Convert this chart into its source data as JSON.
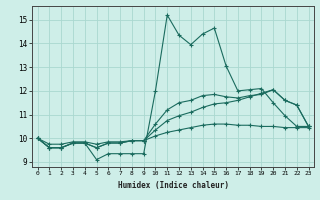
{
  "xlabel": "Humidex (Indice chaleur)",
  "background_color": "#ceeee8",
  "grid_color": "#aad8d0",
  "line_color": "#1a6b5e",
  "xlim": [
    -0.5,
    23.5
  ],
  "ylim": [
    8.8,
    15.6
  ],
  "xticks": [
    0,
    1,
    2,
    3,
    4,
    5,
    6,
    7,
    8,
    9,
    10,
    11,
    12,
    13,
    14,
    15,
    16,
    17,
    18,
    19,
    20,
    21,
    22,
    23
  ],
  "yticks": [
    9,
    10,
    11,
    12,
    13,
    14,
    15
  ],
  "series": [
    [
      10.0,
      9.6,
      9.6,
      9.8,
      9.8,
      9.1,
      9.35,
      9.35,
      9.35,
      9.35,
      12.0,
      15.2,
      14.35,
      13.95,
      14.4,
      14.65,
      13.05,
      12.0,
      12.05,
      12.1,
      11.5,
      10.95,
      10.5,
      10.5
    ],
    [
      10.0,
      9.6,
      9.6,
      9.8,
      9.8,
      9.6,
      9.8,
      9.8,
      9.9,
      9.9,
      10.6,
      11.2,
      11.5,
      11.6,
      11.8,
      11.85,
      11.75,
      11.7,
      11.8,
      11.85,
      12.05,
      11.6,
      11.4,
      10.5
    ],
    [
      10.0,
      9.6,
      9.6,
      9.8,
      9.8,
      9.6,
      9.8,
      9.8,
      9.9,
      9.9,
      10.35,
      10.75,
      10.95,
      11.1,
      11.3,
      11.45,
      11.5,
      11.6,
      11.75,
      11.9,
      12.05,
      11.6,
      11.4,
      10.5
    ],
    [
      10.0,
      9.75,
      9.75,
      9.85,
      9.85,
      9.75,
      9.85,
      9.85,
      9.9,
      9.9,
      10.1,
      10.25,
      10.35,
      10.45,
      10.55,
      10.6,
      10.6,
      10.55,
      10.55,
      10.5,
      10.5,
      10.45,
      10.45,
      10.45
    ]
  ]
}
